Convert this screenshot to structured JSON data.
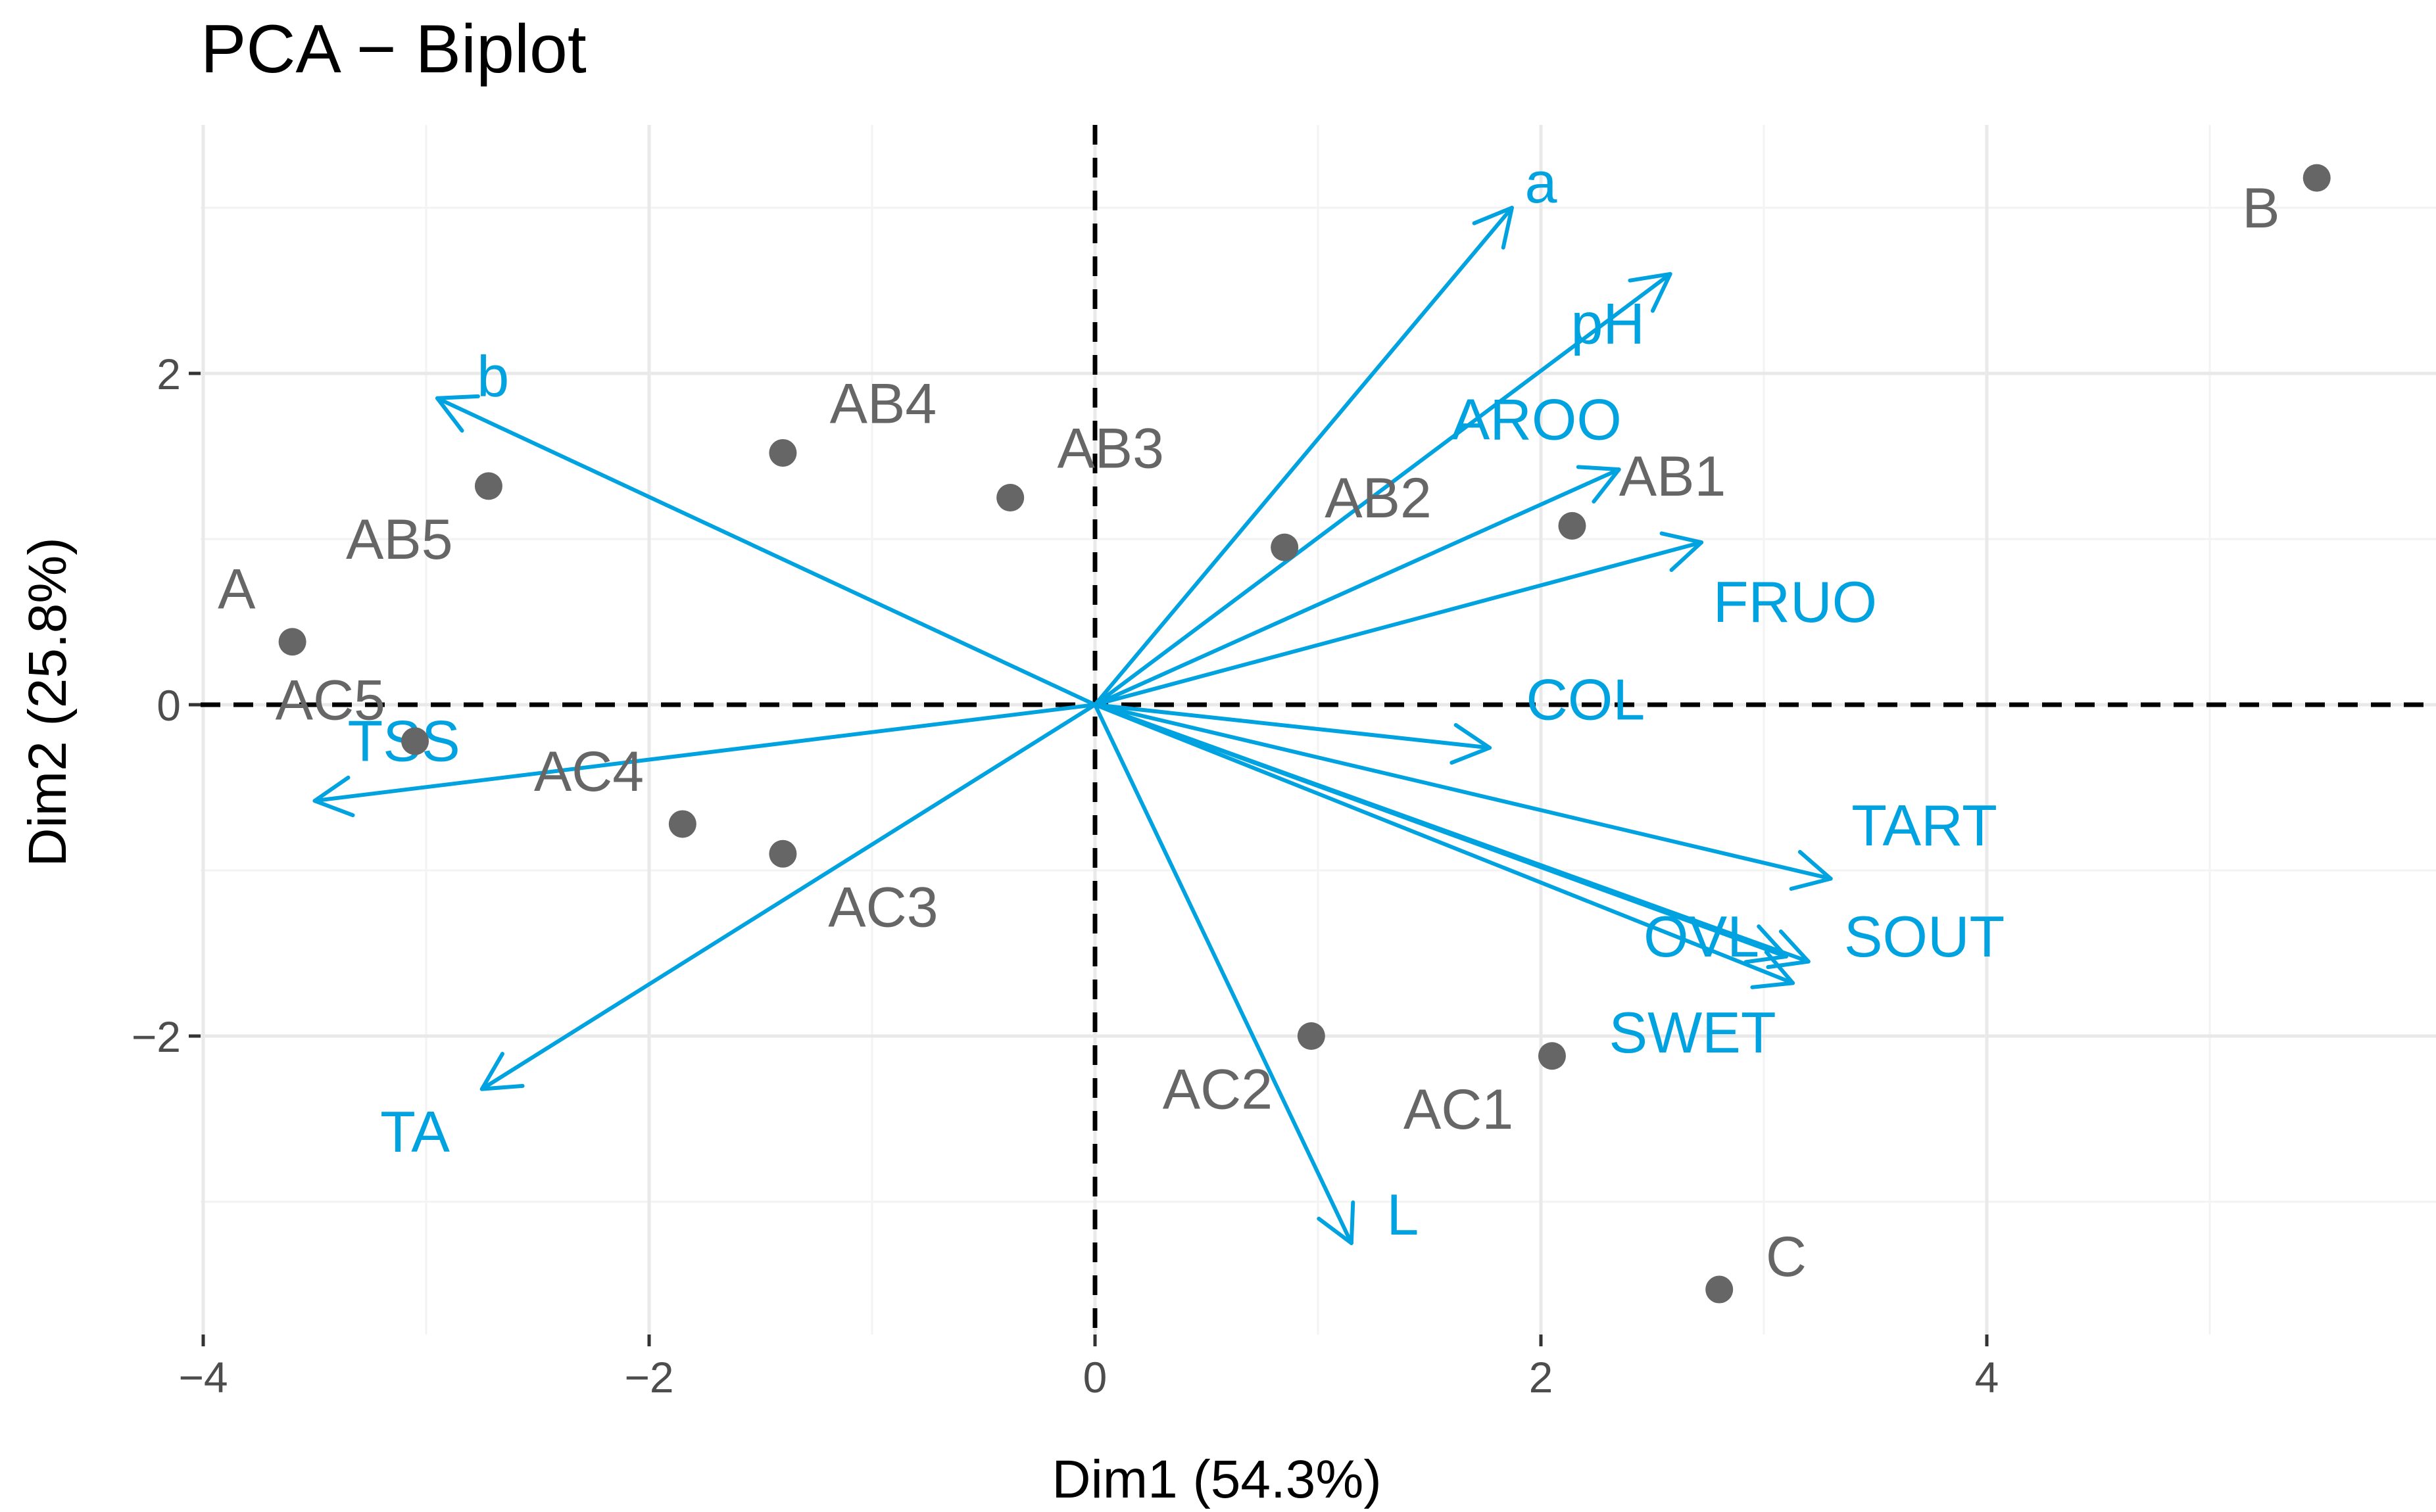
{
  "chart_data": {
    "type": "scatter",
    "subtype": "pca-biplot",
    "title": "PCA − Biplot",
    "xlabel": "Dim1 (54.3%)",
    "ylabel": "Dim2 (25.8%)",
    "xlim": [
      -4.1,
      5.9
    ],
    "ylim": [
      -3.85,
      3.5
    ],
    "x_ticks": [
      -4,
      -2,
      0,
      2,
      4
    ],
    "x_tick_labels": [
      "−4",
      "−2",
      "0",
      "2",
      "4"
    ],
    "y_ticks": [
      -2,
      0,
      2
    ],
    "y_tick_labels": [
      "−2",
      "0",
      "2"
    ],
    "grid": true,
    "reference_lines": {
      "x": 0,
      "y": 0,
      "style": "dashed"
    },
    "colors": {
      "individuals": "#666666",
      "variables": "#00a3e0"
    },
    "individuals": [
      {
        "name": "A",
        "x": -3.6,
        "y": 0.38,
        "label_dx": -0.25,
        "label_dy": 0.32
      },
      {
        "name": "B",
        "x": 5.48,
        "y": 3.18,
        "label_dx": -0.25,
        "label_dy": -0.18
      },
      {
        "name": "C",
        "x": 2.8,
        "y": -3.53,
        "label_dx": 0.3,
        "label_dy": 0.2
      },
      {
        "name": "AB1",
        "x": 2.14,
        "y": 1.08,
        "label_dx": 0.45,
        "label_dy": 0.3
      },
      {
        "name": "AB2",
        "x": 0.85,
        "y": 0.95,
        "label_dx": 0.42,
        "label_dy": 0.3
      },
      {
        "name": "AB3",
        "x": -0.38,
        "y": 1.25,
        "label_dx": 0.45,
        "label_dy": 0.3
      },
      {
        "name": "AB4",
        "x": -1.4,
        "y": 1.52,
        "label_dx": 0.45,
        "label_dy": 0.3
      },
      {
        "name": "AB5",
        "x": -2.72,
        "y": 1.32,
        "label_dx": -0.4,
        "label_dy": -0.32
      },
      {
        "name": "AC1",
        "x": 2.05,
        "y": -2.12,
        "label_dx": -0.42,
        "label_dy": -0.32
      },
      {
        "name": "AC2",
        "x": 0.97,
        "y": -2.0,
        "label_dx": -0.42,
        "label_dy": -0.32
      },
      {
        "name": "AC3",
        "x": -1.4,
        "y": -0.9,
        "label_dx": 0.45,
        "label_dy": -0.32
      },
      {
        "name": "AC4",
        "x": -1.85,
        "y": -0.72,
        "label_dx": -0.42,
        "label_dy": 0.32
      },
      {
        "name": "AC5",
        "x": -3.05,
        "y": -0.22,
        "label_dx": -0.38,
        "label_dy": 0.25
      }
    ],
    "variables": [
      {
        "name": "a",
        "x": 1.87,
        "y": 3.0,
        "label_x": 2.0,
        "label_y": 3.15
      },
      {
        "name": "pH",
        "x": 2.58,
        "y": 2.6,
        "label_x": 2.3,
        "label_y": 2.3
      },
      {
        "name": "AROO",
        "x": 2.35,
        "y": 1.42,
        "label_x": 1.98,
        "label_y": 1.72
      },
      {
        "name": "FRUO",
        "x": 2.72,
        "y": 0.98,
        "label_x": 3.14,
        "label_y": 0.62
      },
      {
        "name": "COL",
        "x": 1.77,
        "y": -0.26,
        "label_x": 2.2,
        "label_y": 0.03
      },
      {
        "name": "TART",
        "x": 3.3,
        "y": -1.05,
        "label_x": 3.72,
        "label_y": -0.73
      },
      {
        "name": "SOUT",
        "x": 3.2,
        "y": -1.55,
        "label_x": 3.72,
        "label_y": -1.4
      },
      {
        "name": "OVL",
        "x": 3.13,
        "y": -1.68,
        "label_x": 2.72,
        "label_y": -1.4
      },
      {
        "name": "SWET",
        "x": 3.1,
        "y": -1.52,
        "label_x": 2.68,
        "label_y": -1.98
      },
      {
        "name": "L",
        "x": 1.15,
        "y": -3.25,
        "label_x": 1.38,
        "label_y": -3.08
      },
      {
        "name": "TA",
        "x": -2.75,
        "y": -2.32,
        "label_x": -3.05,
        "label_y": -2.58
      },
      {
        "name": "TSS",
        "x": -3.5,
        "y": -0.58,
        "label_x": -3.1,
        "label_y": -0.22
      },
      {
        "name": "b",
        "x": -2.95,
        "y": 1.85,
        "label_x": -2.7,
        "label_y": 1.98
      }
    ]
  }
}
